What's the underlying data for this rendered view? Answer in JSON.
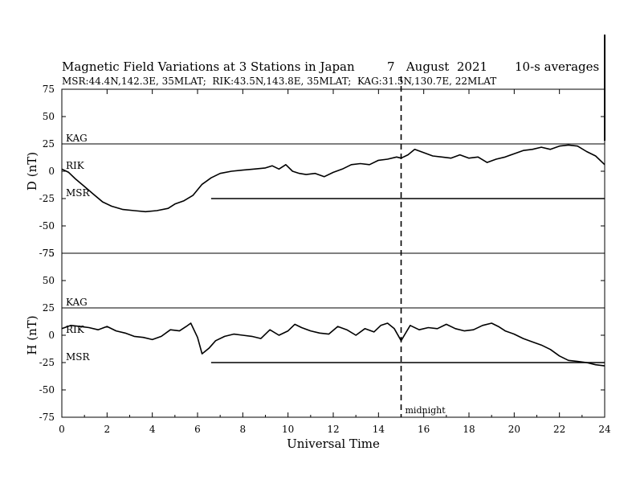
{
  "chart_data": {
    "type": "line",
    "title": "Magnetic Field Variations at 3 Stations in Japan",
    "date": "7   August  2021",
    "averaging": "10-s averages",
    "subtitle": "MSR:44.4N,142.3E, 35MLAT;  RIK:43.5N,143.8E, 35MLAT;  KAG:31.5N,130.7E, 22MLAT",
    "xlabel": "Universal Time",
    "x_ticks": [
      "0",
      "2",
      "4",
      "6",
      "8",
      "10",
      "12",
      "14",
      "16",
      "18",
      "20",
      "22",
      "24"
    ],
    "xlim": [
      0,
      24
    ],
    "grid": false,
    "annotation": {
      "label": "midnight",
      "x": 15
    },
    "panels": [
      {
        "ylabel": "D (nT)",
        "ylim": [
          -75,
          75
        ],
        "y_ticks": [
          "75",
          "50",
          "25",
          "0",
          "-25",
          "-50",
          "-75"
        ],
        "stations": [
          {
            "name": "KAG",
            "offset": 25,
            "x": [
              0,
              24
            ],
            "y": [
              0,
              0
            ]
          },
          {
            "name": "RIK",
            "offset": 0,
            "x": [
              0,
              0.3,
              0.6,
              1.0,
              1.4,
              1.8,
              2.2,
              2.7,
              3.2,
              3.7,
              4.2,
              4.7,
              5.0,
              5.4,
              5.8,
              6.2,
              6.6,
              7.0,
              7.5,
              8.0,
              8.5,
              9.0,
              9.3,
              9.6,
              9.9,
              10.2,
              10.5,
              10.8,
              11.2,
              11.6,
              12.0,
              12.4,
              12.8,
              13.2,
              13.6,
              14.0,
              14.4,
              14.8,
              15.0,
              15.3,
              15.6,
              16.0,
              16.4,
              16.8,
              17.2,
              17.6,
              18.0,
              18.4,
              18.8,
              19.2,
              19.6,
              20.0,
              20.4,
              20.8,
              21.2,
              21.6,
              22.0,
              22.4,
              22.8,
              23.2,
              23.6,
              24.0
            ],
            "y": [
              2,
              -1,
              -7,
              -14,
              -21,
              -28,
              -32,
              -35,
              -36,
              -37,
              -36,
              -34,
              -30,
              -27,
              -22,
              -12,
              -6,
              -2,
              0,
              1,
              2,
              3,
              5,
              2,
              6,
              0,
              -2,
              -3,
              -2,
              -5,
              -1,
              2,
              6,
              7,
              6,
              10,
              11,
              13,
              12,
              15,
              20,
              17,
              14,
              13,
              12,
              15,
              12,
              13,
              8,
              11,
              13,
              16,
              19,
              20,
              22,
              20,
              23,
              24,
              23,
              18,
              14,
              6
            ]
          },
          {
            "name": "MSR",
            "offset": -25,
            "x": [
              6.6,
              7.0,
              8.0,
              9.0,
              10.0,
              11.0,
              12.0,
              13.0,
              14.0,
              15.0,
              16.0,
              17.0,
              18.0,
              19.0,
              20.0,
              21.0,
              22.0,
              23.0,
              24.0
            ],
            "y": [
              0,
              0,
              0,
              0,
              0,
              0,
              0,
              0,
              0,
              0,
              0,
              0,
              0,
              0,
              0,
              0,
              0,
              0,
              0
            ]
          }
        ]
      },
      {
        "ylabel": "H (nT)",
        "ylim": [
          -75,
          75
        ],
        "y_ticks": [
          "75",
          "50",
          "25",
          "0",
          "-25",
          "-50",
          "-75"
        ],
        "stations": [
          {
            "name": "KAG",
            "offset": 25,
            "x": [
              0,
              24
            ],
            "y": [
              0,
              0
            ]
          },
          {
            "name": "RIK",
            "offset": 0,
            "x": [
              0,
              0.4,
              0.8,
              1.2,
              1.6,
              2.0,
              2.4,
              2.8,
              3.2,
              3.6,
              4.0,
              4.4,
              4.8,
              5.2,
              5.5,
              5.7,
              6.0,
              6.2,
              6.5,
              6.8,
              7.2,
              7.6,
              8.0,
              8.4,
              8.8,
              9.2,
              9.6,
              10.0,
              10.3,
              10.6,
              11.0,
              11.4,
              11.8,
              12.2,
              12.6,
              13.0,
              13.4,
              13.8,
              14.1,
              14.4,
              14.7,
              15.0,
              15.4,
              15.8,
              16.2,
              16.6,
              17.0,
              17.4,
              17.8,
              18.2,
              18.6,
              19.0,
              19.3,
              19.6,
              20.0,
              20.4,
              20.8,
              21.2,
              21.6,
              22.0,
              22.4,
              22.8,
              23.2,
              23.6,
              24.0
            ],
            "y": [
              6,
              9,
              8,
              7,
              5,
              8,
              4,
              2,
              -1,
              -2,
              -4,
              -1,
              5,
              4,
              8,
              11,
              -2,
              -17,
              -12,
              -5,
              -1,
              1,
              0,
              -1,
              -3,
              5,
              0,
              4,
              10,
              7,
              4,
              2,
              1,
              8,
              5,
              0,
              6,
              3,
              9,
              11,
              6,
              -5,
              9,
              5,
              7,
              6,
              10,
              6,
              4,
              5,
              9,
              11,
              8,
              4,
              1,
              -3,
              -6,
              -9,
              -13,
              -19,
              -23,
              -24,
              -25,
              -27,
              -28
            ]
          },
          {
            "name": "MSR",
            "offset": -25,
            "x": [
              6.6,
              7.0,
              8.0,
              9.0,
              10.0,
              11.0,
              12.0,
              13.0,
              14.0,
              15.0,
              16.0,
              17.0,
              18.0,
              19.0,
              20.0,
              21.0,
              22.0,
              23.0,
              24.0
            ],
            "y": [
              0,
              0,
              0,
              0,
              0,
              0,
              0,
              0,
              0,
              0,
              0,
              0,
              0,
              0,
              0,
              0,
              0,
              0,
              0
            ]
          }
        ]
      }
    ]
  }
}
